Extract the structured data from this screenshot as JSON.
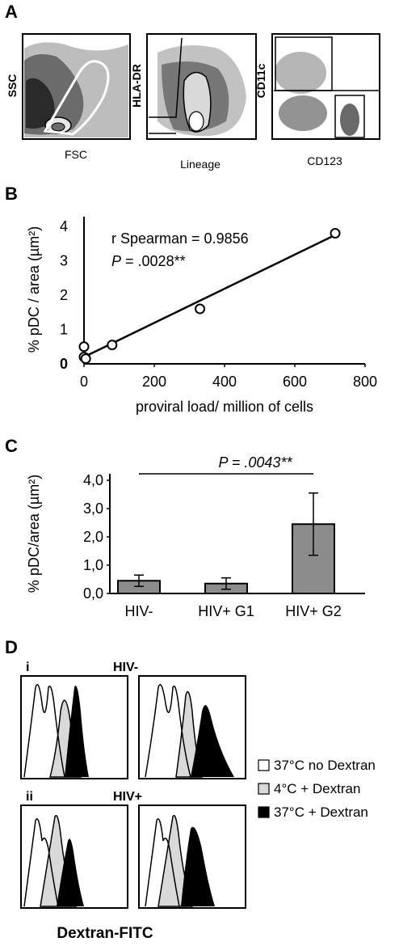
{
  "panels": {
    "a": "A",
    "b": "B",
    "c": "C",
    "d": "D"
  },
  "flow": {
    "plot1": {
      "ylabel": "SSC",
      "xlabel": "FSC"
    },
    "plot2": {
      "ylabel": "HLA-DR",
      "xlabel": "Lineage"
    },
    "plot3": {
      "ylabel": "CD11c",
      "xlabel": "CD123"
    }
  },
  "chart_data": [
    {
      "type": "scatter",
      "xlabel": "proviral load/ million of cells",
      "ylabel": "% pDC / area (µm²)",
      "xlim": [
        0,
        800
      ],
      "ylim": [
        0,
        4
      ],
      "xticks": [
        "0",
        "200",
        "400",
        "600",
        "800"
      ],
      "yticks": [
        "0",
        "1",
        "2",
        "3",
        "4"
      ],
      "points": [
        {
          "x": 0,
          "y": 0.5
        },
        {
          "x": 0,
          "y": 0.2
        },
        {
          "x": 5,
          "y": 0.15
        },
        {
          "x": 80,
          "y": 0.55
        },
        {
          "x": 330,
          "y": 1.6
        },
        {
          "x": 715,
          "y": 3.8
        }
      ],
      "fit_line": {
        "x": [
          0,
          715
        ],
        "y": [
          0.2,
          3.75
        ]
      },
      "annotation_line1": "r Spearman = 0.9856",
      "annotation_p": "P",
      "annotation_line2": " = .0028**"
    },
    {
      "type": "bar",
      "categories": [
        "HIV-",
        "HIV+ G1",
        "HIV+ G2"
      ],
      "values": [
        0.45,
        0.35,
        2.45
      ],
      "errors": [
        0.2,
        0.2,
        1.1
      ],
      "ylabel": "% pDC/area (µm²)",
      "ylim": [
        0,
        4
      ],
      "yticks": [
        "0,0",
        "1,0",
        "2,0",
        "3,0",
        "4,0"
      ],
      "significance": "P = .0043**",
      "color": "#8c8c8c"
    }
  ],
  "histograms": {
    "row1_label": "i",
    "row1_title": "HIV-",
    "row2_label": "ii",
    "row2_title": "HIV+",
    "xlabel": "Dextran-FITC",
    "legend": [
      {
        "label": "37°C no Dextran",
        "color": "#ffffff"
      },
      {
        "label": "4°C +  Dextran",
        "color": "#d9d9d9"
      },
      {
        "label": "37°C +  Dextran",
        "color": "#000000"
      }
    ]
  }
}
